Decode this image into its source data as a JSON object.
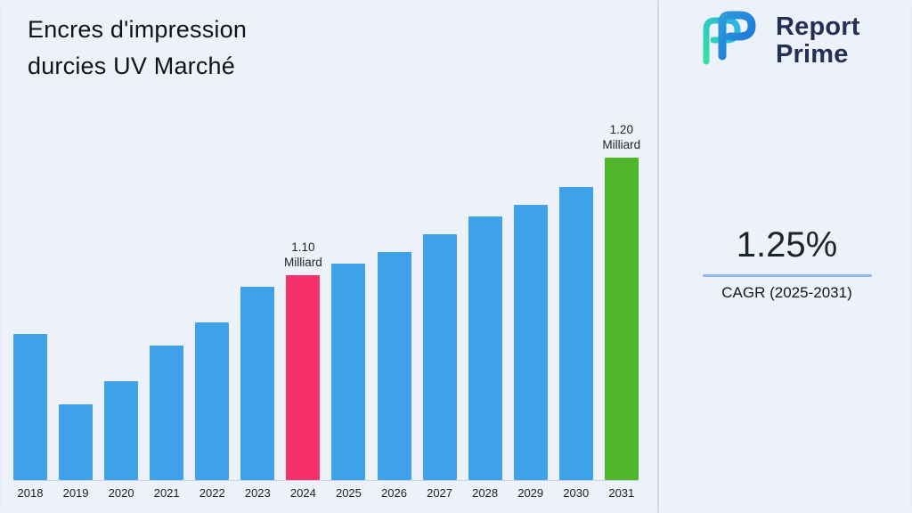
{
  "header": {
    "title_line1": "Encres d'impression",
    "title_line2": "durcies UV Marché"
  },
  "logo": {
    "name": "Report Prime",
    "text_line1": "Report",
    "text_line2": "Prime",
    "text_color": "#232F55",
    "mark_blue": "#1B6FD8",
    "mark_teal": "#35E0A1"
  },
  "stats": {
    "cagr_value": "1.25%",
    "cagr_label": "CAGR (2025-2031)",
    "accent_line_color": "#8FB9EF"
  },
  "chart_data": {
    "type": "bar",
    "title": "Encres d'impression durcies UV Marché",
    "xlabel": "",
    "ylabel": "",
    "unit": "Milliard",
    "categories": [
      2018,
      2019,
      2020,
      2021,
      2022,
      2023,
      2024,
      2025,
      2026,
      2027,
      2028,
      2029,
      2030,
      2031
    ],
    "values": [
      1.05,
      0.99,
      1.01,
      1.04,
      1.06,
      1.09,
      1.1,
      1.11,
      1.12,
      1.135,
      1.15,
      1.16,
      1.175,
      1.2
    ],
    "ylim": [
      0.97,
      1.22
    ],
    "y_axis_visible": false,
    "grid": false,
    "legend": "none",
    "colors": {
      "default": "#3FA2E8",
      "highlights": {
        "2024": "#F5306B",
        "2031": "#4FB62B"
      }
    },
    "annotations": [
      {
        "year": 2024,
        "value_label": "1.10",
        "unit_label": "Milliard"
      },
      {
        "year": 2031,
        "value_label": "1.20",
        "unit_label": "Milliard"
      }
    ]
  }
}
